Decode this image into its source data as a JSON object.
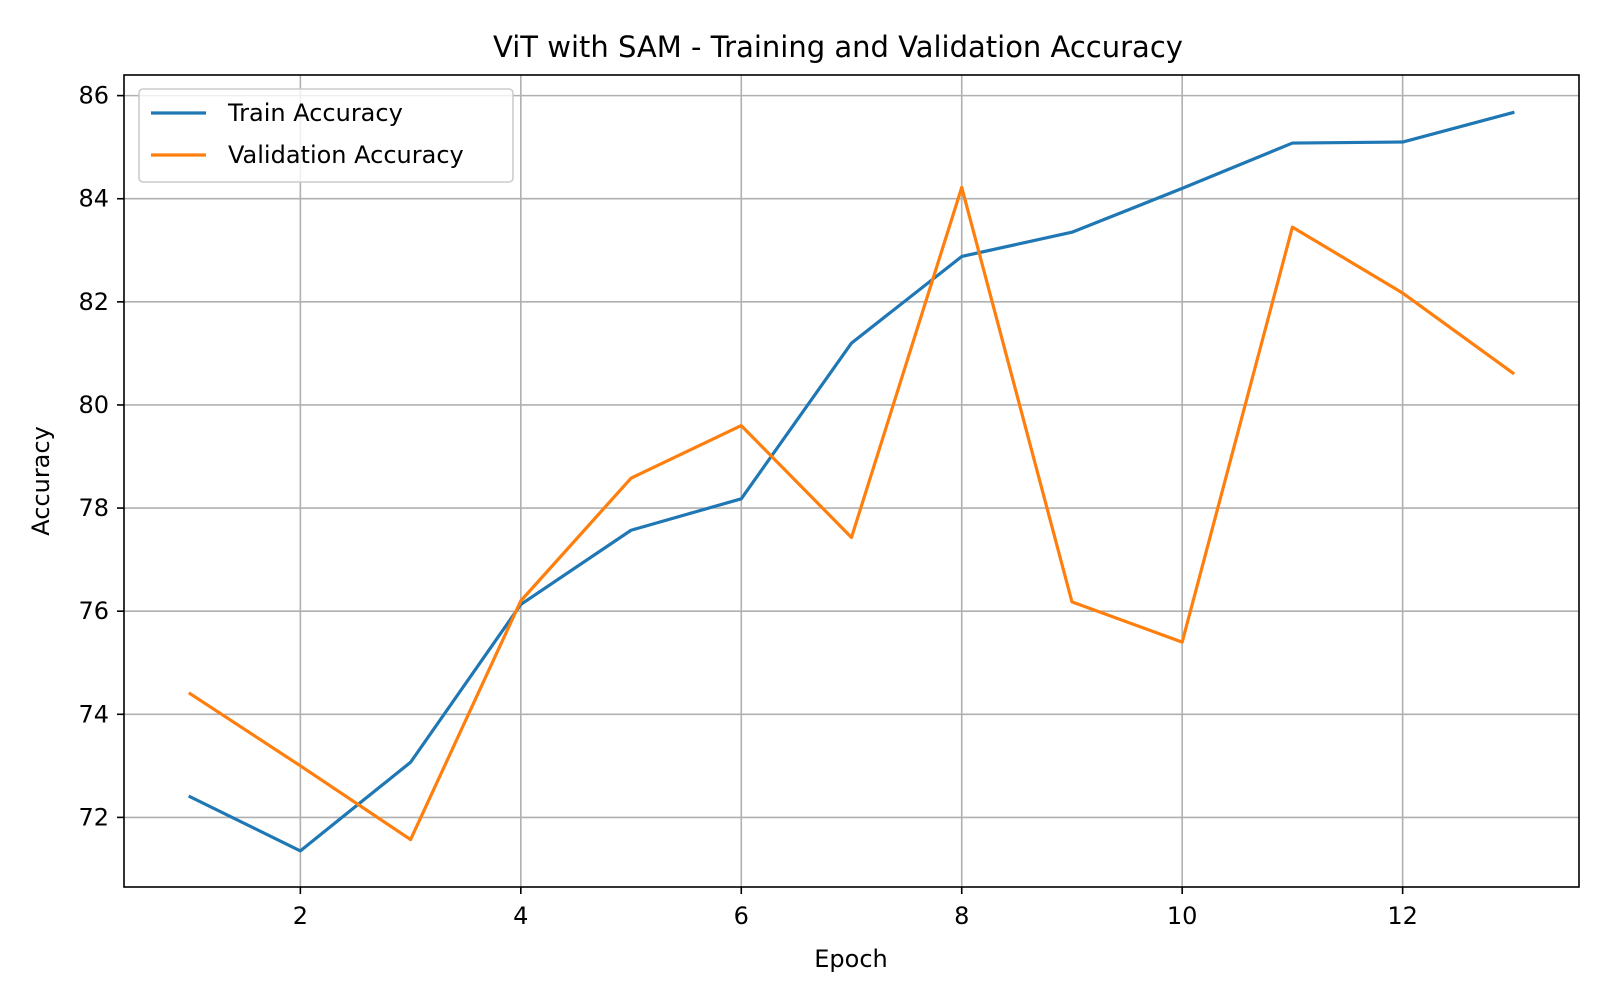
{
  "chart_data": {
    "type": "line",
    "title": "ViT with SAM - Training and Validation Accuracy",
    "xlabel": "Epoch",
    "ylabel": "Accuracy",
    "x": [
      1,
      2,
      3,
      4,
      5,
      6,
      7,
      8,
      9,
      10,
      11,
      12,
      13
    ],
    "xlim": [
      0.4,
      13.6
    ],
    "ylim": [
      70.65,
      86.4
    ],
    "xticks": [
      2,
      4,
      6,
      8,
      10,
      12
    ],
    "xtick_labels": [
      "2",
      "4",
      "6",
      "8",
      "10",
      "12"
    ],
    "yticks": [
      72,
      74,
      76,
      78,
      80,
      82,
      84,
      86
    ],
    "ytick_labels": [
      "72",
      "74",
      "76",
      "78",
      "80",
      "82",
      "84",
      "86"
    ],
    "grid": true,
    "legend_position": "top-left",
    "series": [
      {
        "name": "Train Accuracy",
        "color": "#1f77b4",
        "values": [
          72.4,
          71.35,
          73.07,
          76.13,
          77.57,
          78.18,
          81.2,
          82.88,
          83.35,
          84.2,
          85.08,
          85.1,
          85.67
        ]
      },
      {
        "name": "Validation Accuracy",
        "color": "#ff7f0e",
        "values": [
          74.4,
          73.0,
          71.57,
          76.2,
          78.58,
          79.6,
          77.43,
          84.22,
          76.18,
          75.4,
          83.45,
          82.17,
          80.62
        ]
      }
    ]
  }
}
